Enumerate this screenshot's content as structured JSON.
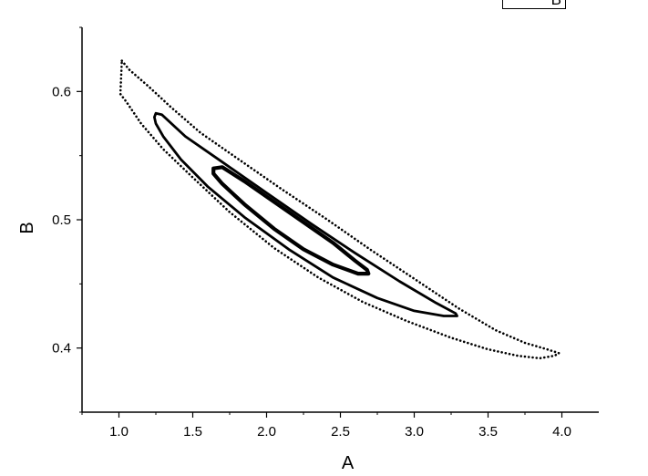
{
  "chart_data": {
    "type": "scatter",
    "xlabel": "A",
    "ylabel": "B",
    "xlim": [
      0.75,
      4.25
    ],
    "ylim": [
      0.35,
      0.65
    ],
    "x_ticks": [
      "1.0",
      "1.5",
      "2.0",
      "2.5",
      "3.0",
      "3.5",
      "4.0"
    ],
    "y_ticks": [
      "0.4",
      "0.5",
      "0.6"
    ],
    "legend": {
      "label": "B",
      "placement": "top-right"
    },
    "series": [
      {
        "style": "dotted",
        "points": [
          [
            1.02,
            0.624
          ],
          [
            1.07,
            0.617
          ],
          [
            1.2,
            0.604
          ],
          [
            1.35,
            0.588
          ],
          [
            1.55,
            0.568
          ],
          [
            1.8,
            0.548
          ],
          [
            2.1,
            0.524
          ],
          [
            2.4,
            0.501
          ],
          [
            2.7,
            0.477
          ],
          [
            3.0,
            0.454
          ],
          [
            3.3,
            0.431
          ],
          [
            3.55,
            0.414
          ],
          [
            3.75,
            0.404
          ],
          [
            3.9,
            0.399
          ],
          [
            3.98,
            0.396
          ],
          [
            3.95,
            0.394
          ],
          [
            3.85,
            0.392
          ],
          [
            3.7,
            0.394
          ],
          [
            3.5,
            0.399
          ],
          [
            3.25,
            0.408
          ],
          [
            2.95,
            0.421
          ],
          [
            2.65,
            0.436
          ],
          [
            2.35,
            0.455
          ],
          [
            2.05,
            0.478
          ],
          [
            1.75,
            0.506
          ],
          [
            1.5,
            0.533
          ],
          [
            1.3,
            0.555
          ],
          [
            1.15,
            0.575
          ],
          [
            1.05,
            0.592
          ],
          [
            1.01,
            0.598
          ]
        ]
      },
      {
        "style": "solid",
        "points": [
          [
            1.25,
            0.583
          ],
          [
            1.29,
            0.582
          ],
          [
            1.45,
            0.565
          ],
          [
            1.7,
            0.545
          ],
          [
            2.0,
            0.521
          ],
          [
            2.3,
            0.497
          ],
          [
            2.6,
            0.474
          ],
          [
            2.9,
            0.452
          ],
          [
            3.15,
            0.435
          ],
          [
            3.28,
            0.427
          ],
          [
            3.29,
            0.425
          ],
          [
            3.2,
            0.425
          ],
          [
            3.0,
            0.429
          ],
          [
            2.75,
            0.439
          ],
          [
            2.45,
            0.455
          ],
          [
            2.15,
            0.477
          ],
          [
            1.85,
            0.502
          ],
          [
            1.6,
            0.526
          ],
          [
            1.42,
            0.547
          ],
          [
            1.3,
            0.565
          ],
          [
            1.25,
            0.575
          ],
          [
            1.24,
            0.58
          ]
        ]
      },
      {
        "style": "thick",
        "points": [
          [
            1.64,
            0.54
          ],
          [
            1.7,
            0.541
          ],
          [
            1.85,
            0.53
          ],
          [
            2.05,
            0.514
          ],
          [
            2.25,
            0.498
          ],
          [
            2.45,
            0.482
          ],
          [
            2.6,
            0.468
          ],
          [
            2.68,
            0.461
          ],
          [
            2.69,
            0.458
          ],
          [
            2.62,
            0.458
          ],
          [
            2.45,
            0.465
          ],
          [
            2.25,
            0.477
          ],
          [
            2.05,
            0.493
          ],
          [
            1.85,
            0.512
          ],
          [
            1.7,
            0.528
          ],
          [
            1.64,
            0.536
          ]
        ]
      }
    ]
  }
}
